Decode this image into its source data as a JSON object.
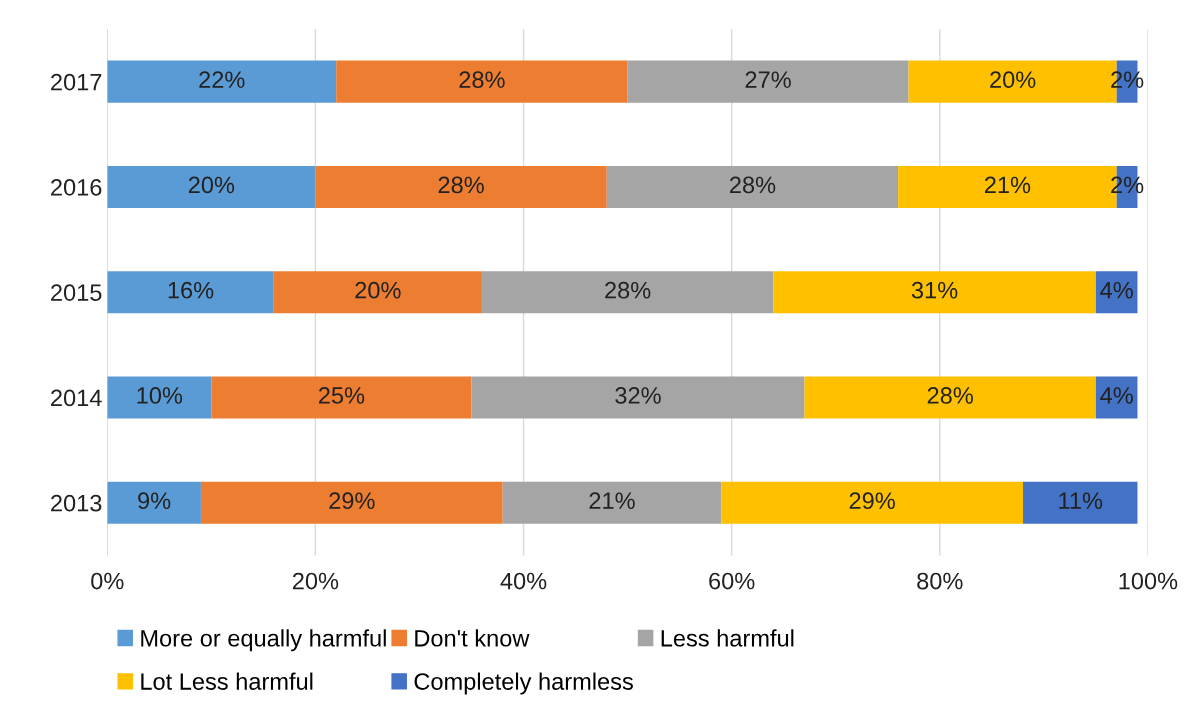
{
  "chart_data": {
    "type": "bar",
    "orientation": "horizontal",
    "stacked": true,
    "categories": [
      "2017",
      "2016",
      "2015",
      "2014",
      "2013"
    ],
    "series": [
      {
        "name": "More or equally harmful",
        "color": "#5b9bd5",
        "values": [
          22,
          20,
          16,
          10,
          9
        ],
        "value_labels": [
          "22%",
          "20%",
          "16%",
          "10%",
          "9%"
        ]
      },
      {
        "name": "Don't know",
        "color": "#ed7d31",
        "values": [
          28,
          28,
          20,
          25,
          29
        ],
        "value_labels": [
          "28%",
          "28%",
          "20%",
          "25%",
          "29%"
        ]
      },
      {
        "name": "Less harmful",
        "color": "#a5a5a5",
        "values": [
          27,
          28,
          28,
          32,
          21
        ],
        "value_labels": [
          "27%",
          "28%",
          "28%",
          "32%",
          "21%"
        ]
      },
      {
        "name": "Lot Less harmful",
        "color": "#ffc000",
        "values": [
          20,
          21,
          31,
          28,
          29
        ],
        "value_labels": [
          "20%",
          "21%",
          "31%",
          "28%",
          "29%"
        ]
      },
      {
        "name": "Completely harmless",
        "color": "#4472c4",
        "values": [
          2,
          2,
          4,
          4,
          11
        ],
        "value_labels": [
          "2%",
          "2%",
          "4%",
          "4%",
          "11%"
        ]
      }
    ],
    "xlim": [
      0,
      100
    ],
    "xticks": [
      {
        "value": 0,
        "label": "0%"
      },
      {
        "value": 20,
        "label": "20%"
      },
      {
        "value": 40,
        "label": "40%"
      },
      {
        "value": 60,
        "label": "60%"
      },
      {
        "value": 80,
        "label": "80%"
      },
      {
        "value": 100,
        "label": "100%"
      }
    ],
    "grid": "x",
    "legend": "bottom"
  }
}
